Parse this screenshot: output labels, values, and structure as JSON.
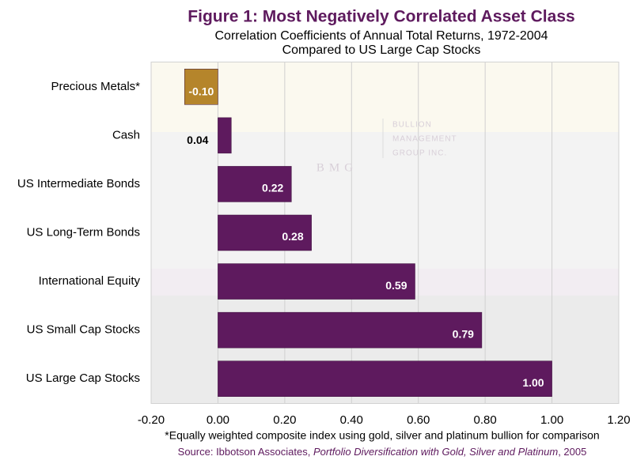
{
  "chart_data": {
    "type": "hbar",
    "title": "Figure 1: Most Negatively Correlated Asset Class",
    "subtitle": [
      "Correlation Coefficients of Annual Total Returns, 1972-2004",
      "Compared to US Large Cap Stocks"
    ],
    "categories": [
      "Precious Metals*",
      "Cash",
      "US Intermediate Bonds",
      "US Long-Term Bonds",
      "International Equity",
      "US Small Cap Stocks",
      "US Large Cap Stocks"
    ],
    "values": [
      -0.1,
      0.04,
      0.22,
      0.28,
      0.59,
      0.79,
      1.0
    ],
    "value_labels": [
      "-0.10",
      "0.04",
      "0.22",
      "0.28",
      "0.59",
      "0.79",
      "1.00"
    ],
    "colors": [
      "#b5852b",
      "#5e1a5e",
      "#5e1a5e",
      "#5e1a5e",
      "#5e1a5e",
      "#5e1a5e",
      "#5e1a5e"
    ],
    "xlim": [
      -0.2,
      1.2
    ],
    "xticks": [
      {
        "value": -0.2,
        "label": "-0.20"
      },
      {
        "value": 0,
        "label": "0.00"
      },
      {
        "value": 0.2,
        "label": "0.20"
      },
      {
        "value": 0.4,
        "label": "0.40"
      },
      {
        "value": 0.6,
        "label": "0.60"
      },
      {
        "value": 0.8,
        "label": "0.80"
      },
      {
        "value": 1.0,
        "label": "1.00"
      },
      {
        "value": 1.2,
        "label": "1.20"
      }
    ],
    "grid": true,
    "watermark": [
      "BULLION",
      "MANAGEMENT",
      "GROUP INC.",
      "BMG"
    ],
    "footnote": "*Equally weighted composite index using gold, silver and platinum bullion for comparison",
    "source": [
      "Source: Ibbotson Associates, ",
      "Portfolio Diversification with Gold, Silver and Platinum",
      ", 2005"
    ]
  }
}
